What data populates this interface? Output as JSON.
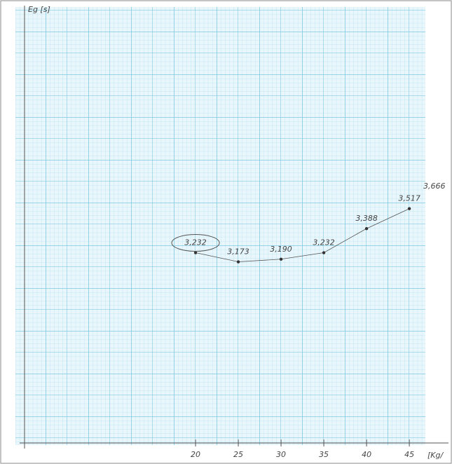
{
  "chart_data": {
    "type": "line",
    "y_label": "Eg [s]",
    "x_label": "[Kg/",
    "x": [
      20,
      25,
      30,
      35,
      40,
      45
    ],
    "series": [
      {
        "name": null,
        "color": "#555555",
        "values": [
          3.232,
          3.173,
          3.19,
          3.232,
          3.388,
          3.517
        ],
        "value_labels": [
          "3,232",
          "3,173",
          "3,190",
          "3,232",
          "3,388",
          "3,517"
        ]
      }
    ],
    "annotation": "3,666",
    "xlim": [
      0,
      49.5
    ],
    "xticks": [
      20,
      25,
      30,
      35,
      40,
      45
    ],
    "ylim": [
      2.0,
      4.8
    ],
    "grid": true
  }
}
